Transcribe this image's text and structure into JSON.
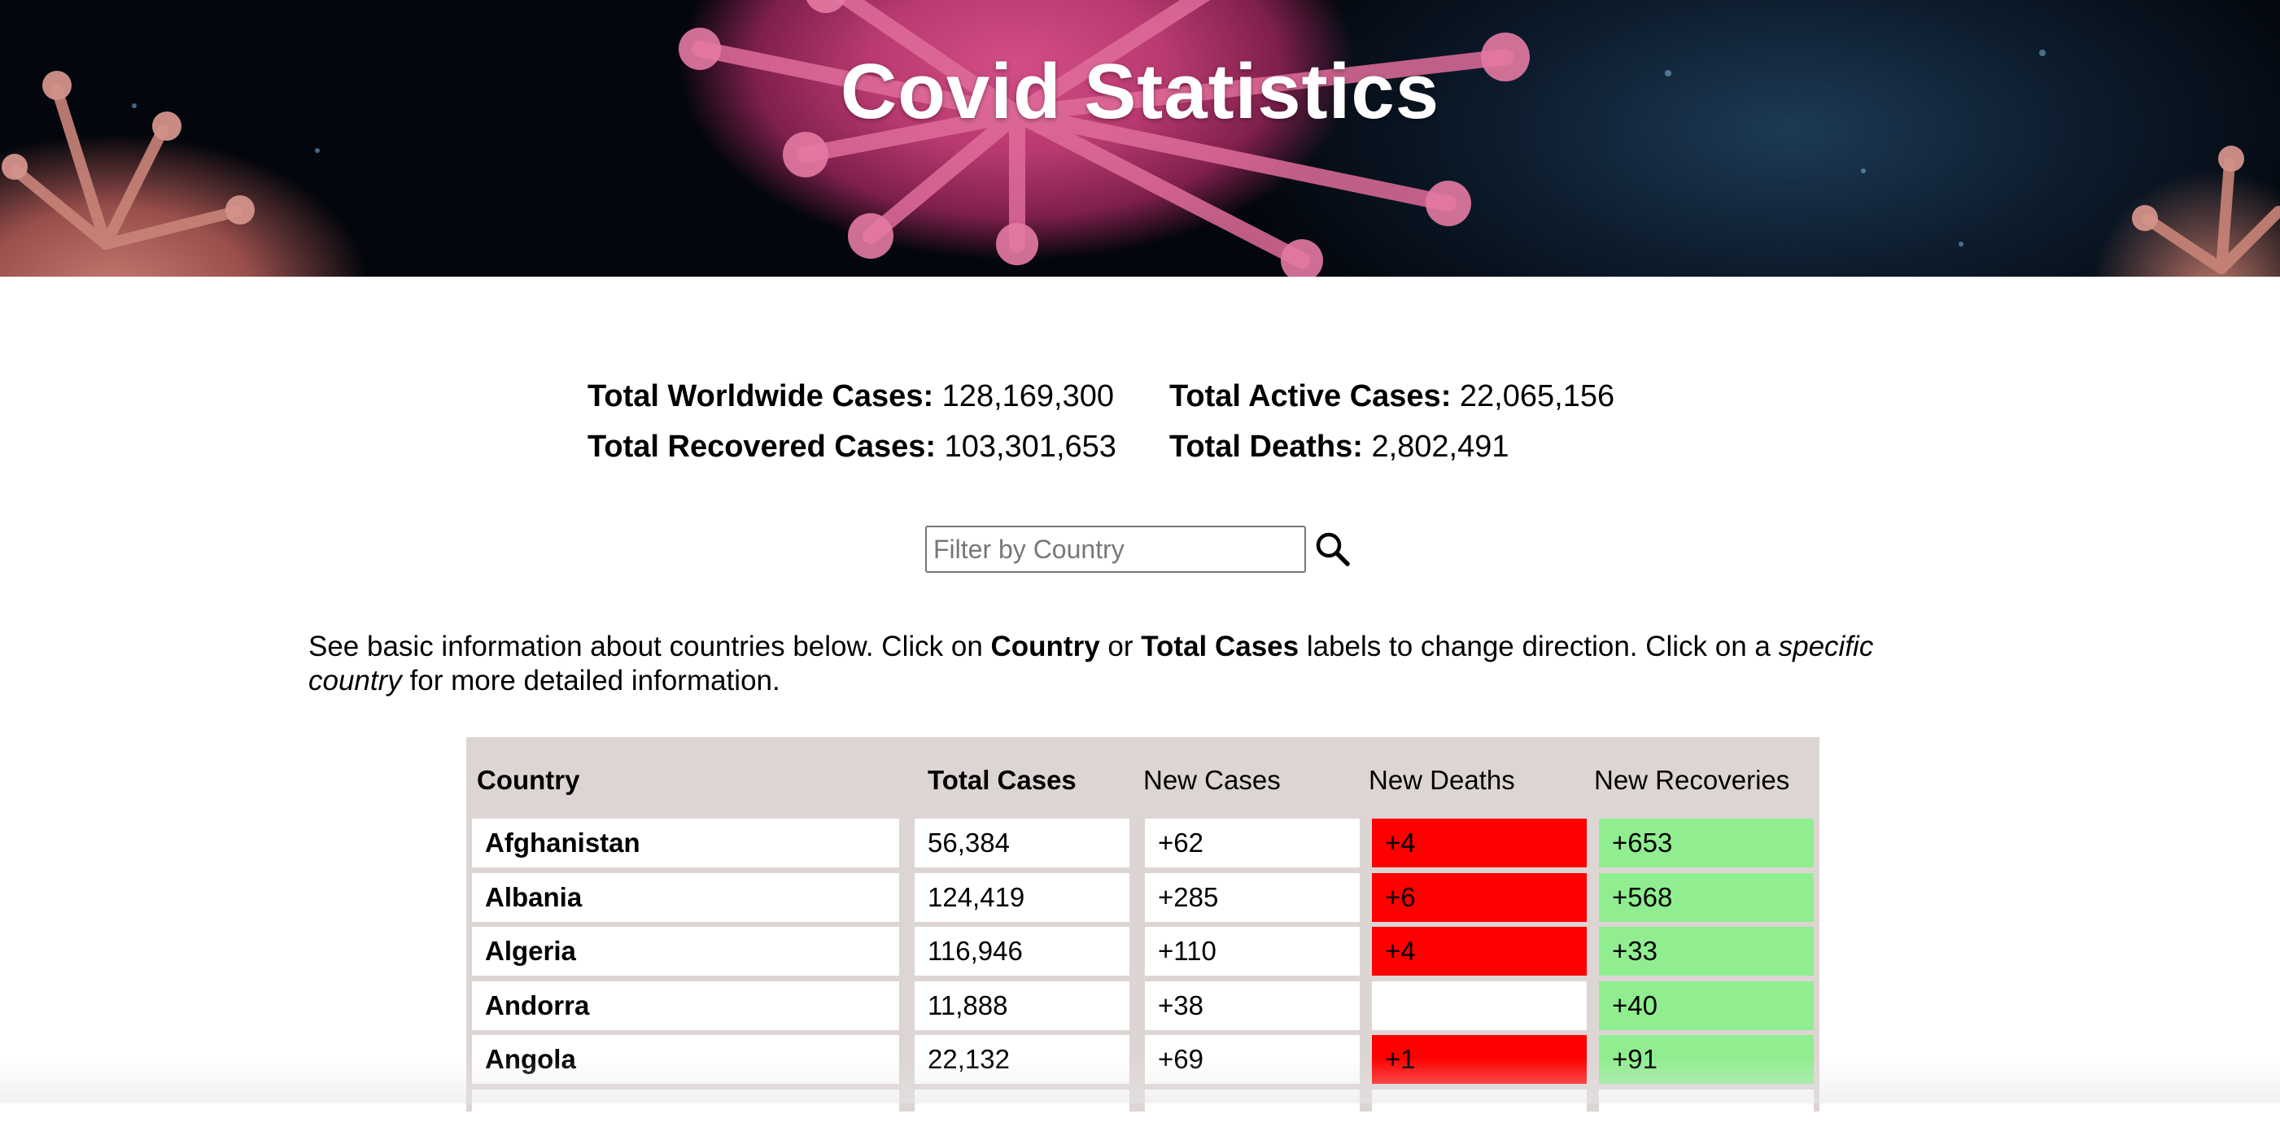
{
  "header": {
    "title": "Covid Statistics"
  },
  "totals": {
    "worldwide_label": "Total Worldwide Cases:",
    "worldwide_value": "128,169,300",
    "active_label": "Total Active Cases:",
    "active_value": "22,065,156",
    "recovered_label": "Total Recovered Cases:",
    "recovered_value": "103,301,653",
    "deaths_label": "Total Deaths:",
    "deaths_value": "2,802,491"
  },
  "search": {
    "placeholder": "Filter by Country",
    "value": "",
    "icon": "search-icon"
  },
  "intro": {
    "part1": "See basic information about countries below. Click on ",
    "bold1": "Country",
    "part2": " or ",
    "bold2": "Total Cases",
    "part3": " labels to change direction. Click on a ",
    "italic1": "specific country",
    "part4": " for more detailed information."
  },
  "table": {
    "headers": [
      "Country",
      "Total Cases",
      "New Cases",
      "New Deaths",
      "New Recoveries"
    ],
    "rows": [
      {
        "country": "Afghanistan",
        "total": "56,384",
        "new_cases": "+62",
        "new_deaths": "+4",
        "new_recoveries": "+653"
      },
      {
        "country": "Albania",
        "total": "124,419",
        "new_cases": "+285",
        "new_deaths": "+6",
        "new_recoveries": "+568"
      },
      {
        "country": "Algeria",
        "total": "116,946",
        "new_cases": "+110",
        "new_deaths": "+4",
        "new_recoveries": "+33"
      },
      {
        "country": "Andorra",
        "total": "11,888",
        "new_cases": "+38",
        "new_deaths": "",
        "new_recoveries": "+40"
      },
      {
        "country": "Angola",
        "total": "22,132",
        "new_cases": "+69",
        "new_deaths": "+1",
        "new_recoveries": "+91"
      },
      {
        "country": "",
        "total": "",
        "new_cases": "",
        "new_deaths": "",
        "new_recoveries": ""
      }
    ]
  },
  "colors": {
    "deaths_highlight": "#ff0000",
    "recoveries_highlight": "#90ee90",
    "table_background": "#ddd5d3"
  }
}
